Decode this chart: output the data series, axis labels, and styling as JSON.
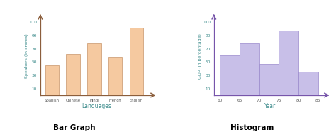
{
  "bar_categories": [
    "Spanish",
    "Chinese",
    "Hindi",
    "French",
    "English"
  ],
  "bar_values": [
    45,
    62,
    78,
    58,
    102
  ],
  "bar_color": "#f5c9a0",
  "bar_edge_color": "#c8956a",
  "bar_ylabel": "Speakers (in crores)",
  "bar_xlabel": "Languages",
  "bar_yticks": [
    10,
    30,
    50,
    70,
    90,
    110
  ],
  "bar_title": "Bar Graph",
  "bar_axis_color": "#8B5E3C",
  "bar_label_color": "#3a8a8a",
  "bar_arrow_color": "#8B5E3C",
  "hist_bin_edges": [
    60,
    65,
    70,
    75,
    80,
    85
  ],
  "hist_values": [
    60,
    78,
    47,
    97,
    35
  ],
  "hist_color": "#c8bfe8",
  "hist_edge_color": "#9988cc",
  "hist_ylabel": "GDP (in percentage)",
  "hist_xlabel": "Year",
  "hist_xticks": [
    60,
    65,
    70,
    75,
    80,
    85
  ],
  "hist_yticks": [
    10,
    30,
    50,
    70,
    90,
    110
  ],
  "hist_title": "Histogram",
  "hist_axis_color": "#7755aa",
  "hist_label_color": "#3a8a8a",
  "hist_arrow_color": "#7755aa",
  "title_color": "#000000",
  "bg_color": "#ffffff"
}
